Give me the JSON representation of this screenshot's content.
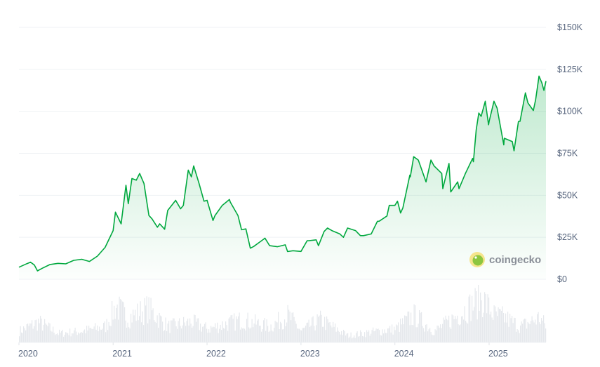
{
  "chart_data": {
    "type": "area",
    "title": "",
    "xlabel": "",
    "ylabel": "",
    "ylim": [
      0,
      150000
    ],
    "xlim": [
      "2020-01-01",
      "2025-08-10"
    ],
    "y_ticks": [
      {
        "value": 0,
        "label": "$0"
      },
      {
        "value": 25000,
        "label": "$25K"
      },
      {
        "value": 50000,
        "label": "$50K"
      },
      {
        "value": 75000,
        "label": "$75K"
      },
      {
        "value": 100000,
        "label": "$100K"
      },
      {
        "value": 125000,
        "label": "$125K"
      },
      {
        "value": 150000,
        "label": "$150K"
      }
    ],
    "x_ticks": [
      {
        "date": "2020-01-01",
        "label": "2020"
      },
      {
        "date": "2021-01-01",
        "label": "2021"
      },
      {
        "date": "2022-01-01",
        "label": "2022"
      },
      {
        "date": "2023-01-01",
        "label": "2023"
      },
      {
        "date": "2024-01-01",
        "label": "2024"
      },
      {
        "date": "2025-01-01",
        "label": "2025"
      }
    ],
    "grid": true,
    "y_axis_position": "right",
    "line_color": "#00a83e",
    "fill_color": "#00a83e",
    "volume_color": "#e5e8ec",
    "price": [
      [
        "2020-01-01",
        7200
      ],
      [
        "2020-02-01",
        9300
      ],
      [
        "2020-02-15",
        10200
      ],
      [
        "2020-03-01",
        8500
      ],
      [
        "2020-03-13",
        5000
      ],
      [
        "2020-04-01",
        6600
      ],
      [
        "2020-05-01",
        8800
      ],
      [
        "2020-06-01",
        9500
      ],
      [
        "2020-07-01",
        9200
      ],
      [
        "2020-08-01",
        11300
      ],
      [
        "2020-09-01",
        11900
      ],
      [
        "2020-10-01",
        10600
      ],
      [
        "2020-11-01",
        13800
      ],
      [
        "2020-12-01",
        19000
      ],
      [
        "2021-01-01",
        29000
      ],
      [
        "2021-01-10",
        40000
      ],
      [
        "2021-02-01",
        33000
      ],
      [
        "2021-02-20",
        56000
      ],
      [
        "2021-03-01",
        45000
      ],
      [
        "2021-03-15",
        60000
      ],
      [
        "2021-04-01",
        59000
      ],
      [
        "2021-04-14",
        63000
      ],
      [
        "2021-05-01",
        57000
      ],
      [
        "2021-05-20",
        38000
      ],
      [
        "2021-06-01",
        36000
      ],
      [
        "2021-06-22",
        31000
      ],
      [
        "2021-07-01",
        33000
      ],
      [
        "2021-07-20",
        29800
      ],
      [
        "2021-08-01",
        41000
      ],
      [
        "2021-09-01",
        47000
      ],
      [
        "2021-09-20",
        42000
      ],
      [
        "2021-10-01",
        44000
      ],
      [
        "2021-10-20",
        65000
      ],
      [
        "2021-11-01",
        61000
      ],
      [
        "2021-11-10",
        67500
      ],
      [
        "2021-12-01",
        57000
      ],
      [
        "2021-12-20",
        46500
      ],
      [
        "2022-01-01",
        47000
      ],
      [
        "2022-01-24",
        35000
      ],
      [
        "2022-02-01",
        38000
      ],
      [
        "2022-03-01",
        44000
      ],
      [
        "2022-03-29",
        47500
      ],
      [
        "2022-04-01",
        46000
      ],
      [
        "2022-05-01",
        38000
      ],
      [
        "2022-05-15",
        29500
      ],
      [
        "2022-06-01",
        30000
      ],
      [
        "2022-06-18",
        18500
      ],
      [
        "2022-07-01",
        19500
      ],
      [
        "2022-08-01",
        23000
      ],
      [
        "2022-08-14",
        24500
      ],
      [
        "2022-09-01",
        20000
      ],
      [
        "2022-10-01",
        19400
      ],
      [
        "2022-11-01",
        20500
      ],
      [
        "2022-11-10",
        16500
      ],
      [
        "2022-12-01",
        17000
      ],
      [
        "2023-01-01",
        16600
      ],
      [
        "2023-01-25",
        23000
      ],
      [
        "2023-02-01",
        23000
      ],
      [
        "2023-03-01",
        23500
      ],
      [
        "2023-03-10",
        20000
      ],
      [
        "2023-04-01",
        28500
      ],
      [
        "2023-04-14",
        30500
      ],
      [
        "2023-05-01",
        29000
      ],
      [
        "2023-06-01",
        27000
      ],
      [
        "2023-06-15",
        25000
      ],
      [
        "2023-07-01",
        30500
      ],
      [
        "2023-08-01",
        29000
      ],
      [
        "2023-08-20",
        26000
      ],
      [
        "2023-09-01",
        26000
      ],
      [
        "2023-10-01",
        27000
      ],
      [
        "2023-10-25",
        34500
      ],
      [
        "2023-11-01",
        34600
      ],
      [
        "2023-12-01",
        37700
      ],
      [
        "2023-12-10",
        44000
      ],
      [
        "2024-01-01",
        44000
      ],
      [
        "2024-01-11",
        46500
      ],
      [
        "2024-01-23",
        39500
      ],
      [
        "2024-02-01",
        42500
      ],
      [
        "2024-02-28",
        62000
      ],
      [
        "2024-03-01",
        61000
      ],
      [
        "2024-03-14",
        73000
      ],
      [
        "2024-04-01",
        71000
      ],
      [
        "2024-05-01",
        58000
      ],
      [
        "2024-05-20",
        71000
      ],
      [
        "2024-06-01",
        67500
      ],
      [
        "2024-07-01",
        63000
      ],
      [
        "2024-07-05",
        54000
      ],
      [
        "2024-07-29",
        69000
      ],
      [
        "2024-08-05",
        52000
      ],
      [
        "2024-09-01",
        58000
      ],
      [
        "2024-09-06",
        54000
      ],
      [
        "2024-10-01",
        63000
      ],
      [
        "2024-10-29",
        72000
      ],
      [
        "2024-11-01",
        70000
      ],
      [
        "2024-11-12",
        89000
      ],
      [
        "2024-11-22",
        99000
      ],
      [
        "2024-12-01",
        97000
      ],
      [
        "2024-12-17",
        106000
      ],
      [
        "2024-12-30",
        92000
      ],
      [
        "2025-01-01",
        94000
      ],
      [
        "2025-01-20",
        106000
      ],
      [
        "2025-02-01",
        102000
      ],
      [
        "2025-02-27",
        80000
      ],
      [
        "2025-03-01",
        84000
      ],
      [
        "2025-04-01",
        82000
      ],
      [
        "2025-04-08",
        76500
      ],
      [
        "2025-04-25",
        94000
      ],
      [
        "2025-05-01",
        94000
      ],
      [
        "2025-05-22",
        111000
      ],
      [
        "2025-06-01",
        105000
      ],
      [
        "2025-06-22",
        100500
      ],
      [
        "2025-07-01",
        107000
      ],
      [
        "2025-07-14",
        121000
      ],
      [
        "2025-07-25",
        117000
      ],
      [
        "2025-08-02",
        112500
      ],
      [
        "2025-08-10",
        118000
      ]
    ],
    "volume_billions_usd": [
      [
        "2020-01-01",
        25
      ],
      [
        "2020-03-15",
        45
      ],
      [
        "2020-06-01",
        20
      ],
      [
        "2020-09-01",
        25
      ],
      [
        "2020-12-01",
        35
      ],
      [
        "2021-01-10",
        80
      ],
      [
        "2021-03-01",
        55
      ],
      [
        "2021-05-15",
        75
      ],
      [
        "2021-08-01",
        35
      ],
      [
        "2021-11-01",
        45
      ],
      [
        "2022-01-01",
        30
      ],
      [
        "2022-05-15",
        50
      ],
      [
        "2022-09-01",
        35
      ],
      [
        "2022-11-10",
        60
      ],
      [
        "2023-01-01",
        25
      ],
      [
        "2023-03-15",
        50
      ],
      [
        "2023-07-01",
        15
      ],
      [
        "2023-10-25",
        25
      ],
      [
        "2024-01-01",
        30
      ],
      [
        "2024-03-14",
        60
      ],
      [
        "2024-06-01",
        25
      ],
      [
        "2024-08-05",
        50
      ],
      [
        "2024-11-12",
        90
      ],
      [
        "2024-12-01",
        100
      ],
      [
        "2025-01-20",
        60
      ],
      [
        "2025-03-01",
        55
      ],
      [
        "2025-05-01",
        35
      ],
      [
        "2025-07-14",
        55
      ],
      [
        "2025-08-10",
        35
      ]
    ]
  },
  "watermark": {
    "text": "coingecko"
  }
}
